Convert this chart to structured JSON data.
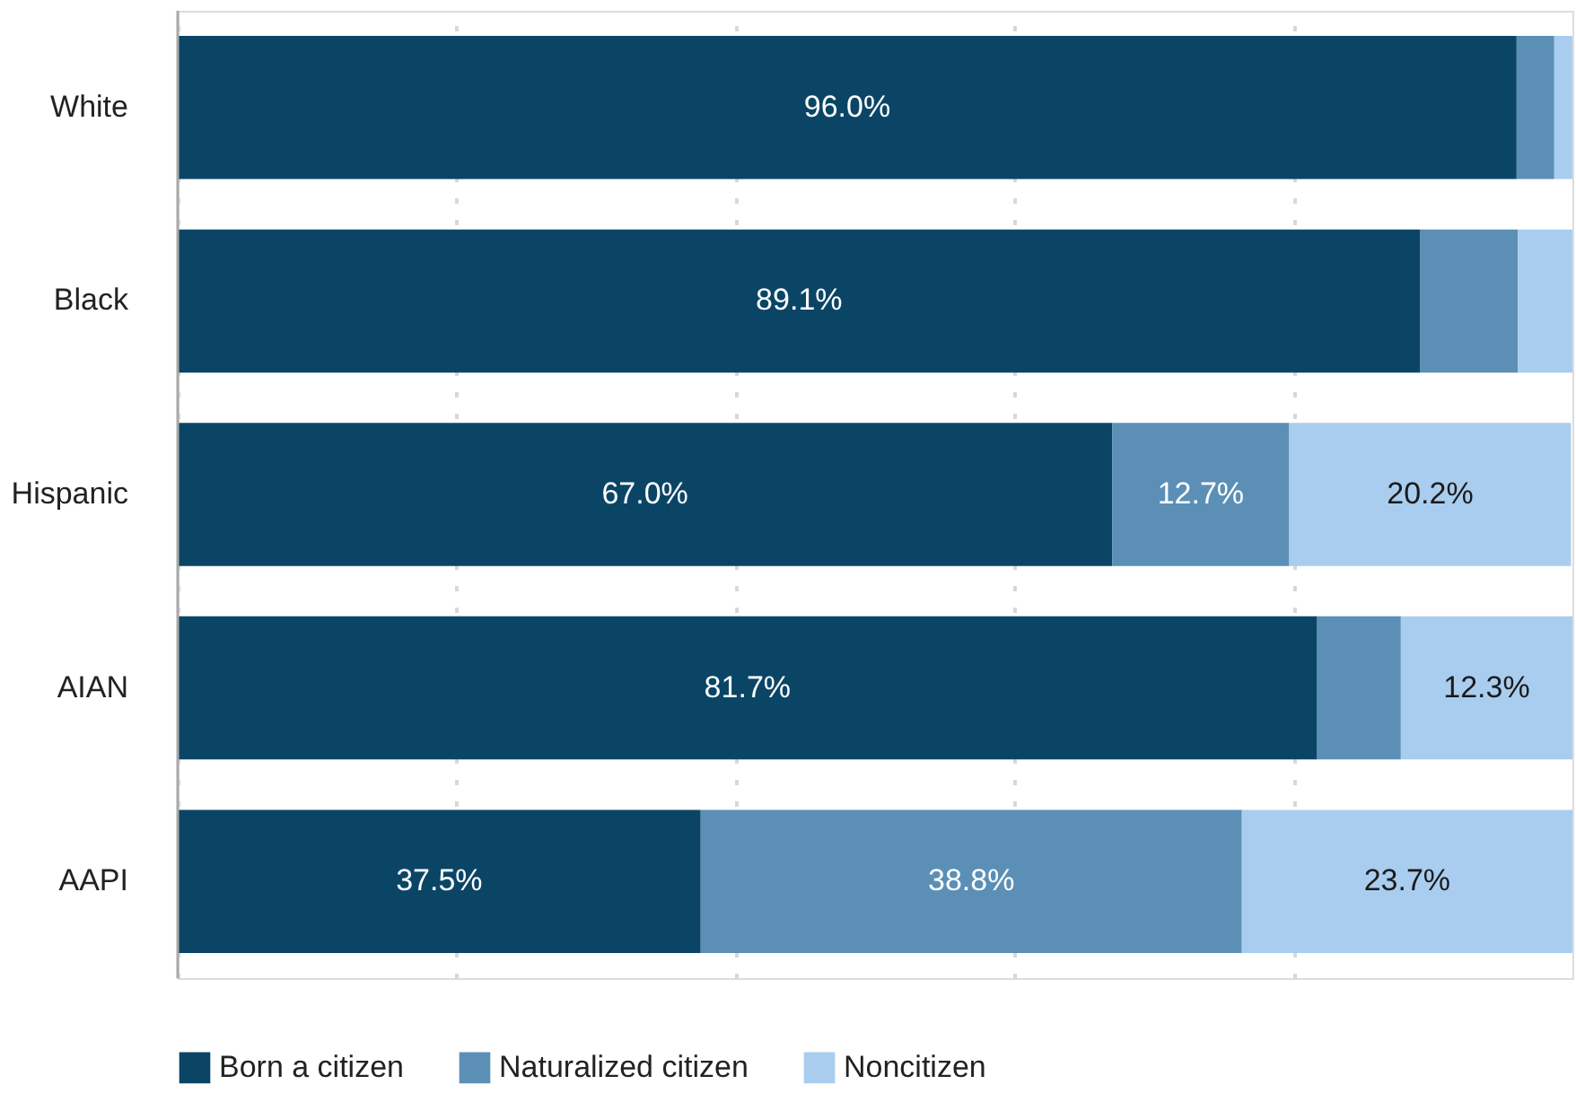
{
  "chart_data": {
    "type": "bar",
    "orientation": "horizontal",
    "stacked": true,
    "categories": [
      "White",
      "Black",
      "Hispanic",
      "AIAN",
      "AAPI"
    ],
    "series": [
      {
        "name": "Born a citizen",
        "color": "#0b4566",
        "values": [
          96.0,
          89.1,
          67.0,
          81.7,
          37.5
        ],
        "value_labels": [
          "96.0%",
          "89.1%",
          "67.0%",
          "81.7%",
          "37.5%"
        ]
      },
      {
        "name": "Naturalized citizen",
        "color": "#5b8fb6",
        "values": [
          2.7,
          7.0,
          12.7,
          6.0,
          38.8
        ],
        "value_labels": [
          null,
          null,
          "12.7%",
          null,
          "38.8%"
        ]
      },
      {
        "name": "Noncitizen",
        "color": "#a9cdee",
        "values": [
          1.3,
          3.9,
          20.2,
          12.3,
          23.7
        ],
        "value_labels": [
          null,
          null,
          "20.2%",
          "12.3%",
          "23.7%"
        ]
      }
    ],
    "xlim": [
      0,
      100
    ],
    "xticks": [
      {
        "value": 0,
        "label": null
      },
      {
        "value": 20,
        "label": null
      },
      {
        "value": 40,
        "label": null
      },
      {
        "value": 60,
        "label": null
      },
      {
        "value": 80,
        "label": null
      }
    ],
    "grid": "x",
    "tick_labels": "y",
    "legend": "bottom"
  }
}
